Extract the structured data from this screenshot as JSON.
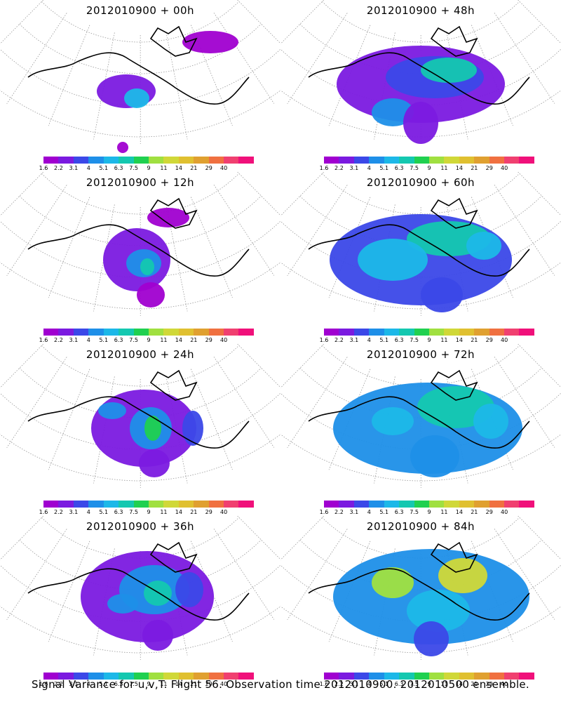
{
  "panels": [
    {
      "title": "2012010900 + 00h",
      "blobs": [
        [
          180,
          130,
          42,
          24,
          1
        ],
        [
          195,
          140,
          18,
          14,
          4
        ],
        [
          175,
          210,
          8,
          8,
          0
        ],
        [
          300,
          60,
          40,
          16,
          0
        ]
      ]
    },
    {
      "title": "2012010900 + 48h",
      "blobs": [
        [
          600,
          120,
          120,
          55,
          1
        ],
        [
          620,
          110,
          70,
          30,
          2
        ],
        [
          640,
          100,
          40,
          18,
          5
        ],
        [
          560,
          160,
          30,
          20,
          3
        ],
        [
          600,
          175,
          25,
          30,
          1
        ]
      ]
    },
    {
      "title": "2012010900 + 12h",
      "blobs": [
        [
          195,
          370,
          48,
          45,
          1
        ],
        [
          205,
          375,
          25,
          20,
          3
        ],
        [
          210,
          380,
          10,
          12,
          5
        ],
        [
          240,
          310,
          30,
          14,
          0
        ],
        [
          215,
          420,
          20,
          18,
          0
        ]
      ]
    },
    {
      "title": "2012010900 + 60h",
      "blobs": [
        [
          600,
          370,
          130,
          65,
          2
        ],
        [
          640,
          340,
          60,
          25,
          5
        ],
        [
          560,
          370,
          50,
          30,
          4
        ],
        [
          630,
          420,
          30,
          25,
          2
        ],
        [
          690,
          350,
          25,
          20,
          4
        ]
      ]
    },
    {
      "title": "2012010900 + 24h",
      "blobs": [
        [
          205,
          610,
          75,
          55,
          1
        ],
        [
          215,
          610,
          30,
          30,
          3
        ],
        [
          218,
          610,
          12,
          18,
          6
        ],
        [
          160,
          585,
          20,
          12,
          3
        ],
        [
          275,
          610,
          15,
          25,
          2
        ],
        [
          220,
          660,
          22,
          20,
          1
        ]
      ]
    },
    {
      "title": "2012010900 + 72h",
      "blobs": [
        [
          610,
          610,
          135,
          65,
          3
        ],
        [
          650,
          580,
          55,
          30,
          5
        ],
        [
          560,
          600,
          30,
          20,
          4
        ],
        [
          620,
          650,
          35,
          30,
          3
        ],
        [
          700,
          600,
          25,
          25,
          4
        ]
      ]
    },
    {
      "title": "2012010900 + 36h",
      "blobs": [
        [
          210,
          850,
          95,
          65,
          1
        ],
        [
          220,
          840,
          50,
          35,
          3
        ],
        [
          225,
          845,
          20,
          18,
          5
        ],
        [
          175,
          860,
          22,
          14,
          3
        ],
        [
          270,
          840,
          20,
          25,
          2
        ],
        [
          225,
          905,
          22,
          22,
          1
        ]
      ]
    },
    {
      "title": "2012010900 + 84h",
      "blobs": [
        [
          615,
          850,
          140,
          68,
          3
        ],
        [
          560,
          830,
          30,
          22,
          7
        ],
        [
          660,
          820,
          35,
          25,
          8
        ],
        [
          625,
          870,
          45,
          30,
          4
        ],
        [
          615,
          910,
          25,
          25,
          2
        ]
      ]
    }
  ],
  "colorbar": {
    "colors": [
      "#a000d0",
      "#7b1ae0",
      "#3b48e8",
      "#1e8fe8",
      "#1cb8e8",
      "#14c8b0",
      "#20d050",
      "#a0e040",
      "#d0d838",
      "#e0c030",
      "#e0a030",
      "#f07040",
      "#f04070",
      "#f0107a"
    ],
    "labels": [
      "1.6",
      "2.2",
      "3.1",
      "4",
      "5.1",
      "6.3",
      "7.5",
      "9",
      "11",
      "14",
      "21",
      "29",
      "40"
    ]
  },
  "footer": "Signal Variance for u,v,T. Flight 56. Observation time 2012010900. 2012010500 ensemble."
}
